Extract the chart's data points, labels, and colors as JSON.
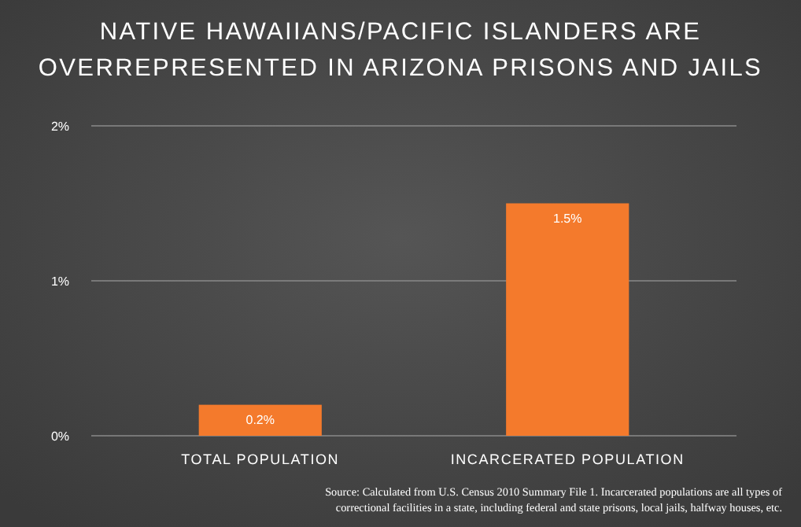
{
  "chart_data": {
    "type": "bar",
    "title": "NATIVE HAWAIIANS/PACIFIC ISLANDERS ARE OVERREPRESENTED IN ARIZONA PRISONS AND JAILS",
    "categories": [
      "TOTAL POPULATION",
      "INCARCERATED POPULATION"
    ],
    "values": [
      0.2,
      1.5
    ],
    "color": "#f47a2c",
    "value_labels": [
      "0.2%",
      "1.5%"
    ],
    "ylim": [
      0,
      2
    ],
    "yticks": [
      {
        "value": 0,
        "label": "0%"
      },
      {
        "value": 1,
        "label": "1%"
      },
      {
        "value": 2,
        "label": "2%"
      }
    ],
    "grid": "y",
    "annotations": [
      "Source: Calculated from U.S. Census 2010 Summary File 1. Incarcerated populations are all types of correctional facilities in a state, including federal and state prisons, local jails, halfway houses, etc."
    ]
  }
}
